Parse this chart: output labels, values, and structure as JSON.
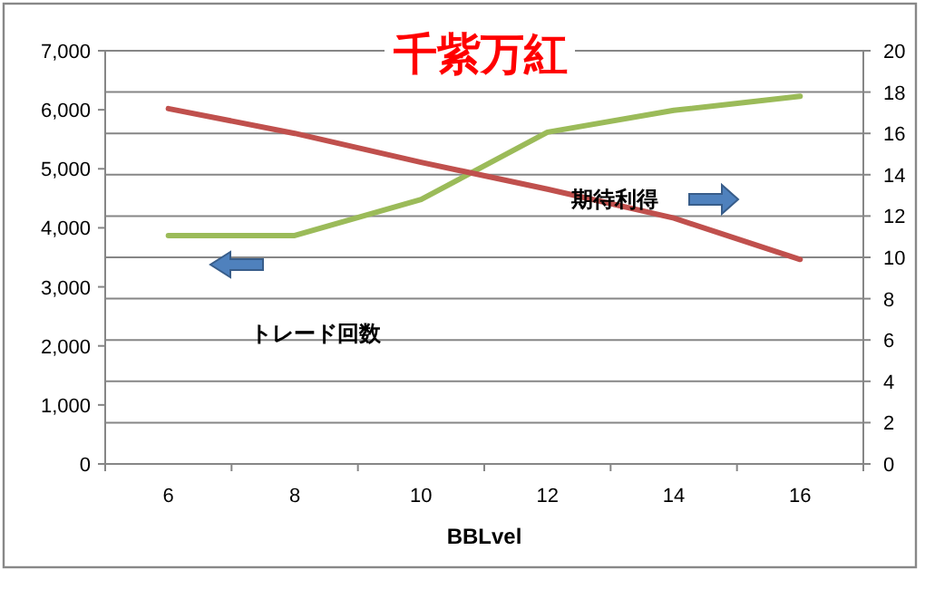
{
  "chart_data": {
    "type": "line",
    "title": "千紫万紅",
    "xlabel": "BBLvel",
    "categories": [
      "6",
      "8",
      "10",
      "12",
      "14",
      "16"
    ],
    "series": [
      {
        "color": "#9bbb59",
        "values": [
          3870,
          3870,
          4480,
          5620,
          5990,
          6230
        ]
      },
      {
        "color": "#c0504d",
        "axis": "y2",
        "values": [
          17.2,
          16.0,
          14.6,
          13.3,
          11.9,
          9.9
        ]
      }
    ],
    "ylim": [
      0,
      7000
    ],
    "yticks": [
      {
        "value": 0,
        "label": "0"
      },
      {
        "value": 1000,
        "label": "1,000"
      },
      {
        "value": 2000,
        "label": "2,000"
      },
      {
        "value": 3000,
        "label": "3,000"
      },
      {
        "value": 4000,
        "label": "4,000"
      },
      {
        "value": 5000,
        "label": "5,000"
      },
      {
        "value": 6000,
        "label": "6,000"
      },
      {
        "value": 7000,
        "label": "7,000"
      }
    ],
    "y2lim": [
      0,
      20
    ],
    "y2ticks": [
      0,
      2,
      4,
      6,
      8,
      10,
      12,
      14,
      16,
      18,
      20
    ],
    "grid": "y2",
    "annotations": [
      "期待利得",
      "トレード回数"
    ]
  }
}
